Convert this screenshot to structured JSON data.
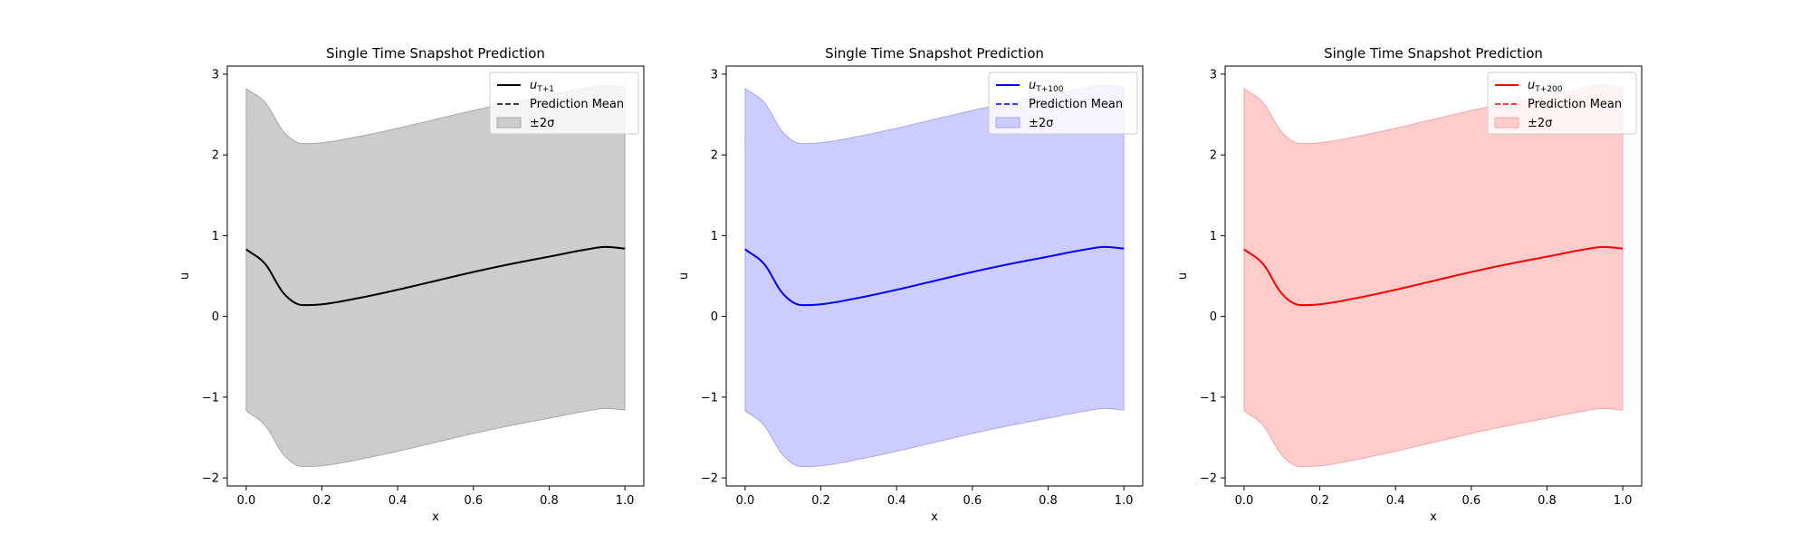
{
  "chart_data": [
    {
      "type": "line",
      "title": "Single Time Snapshot Prediction",
      "xlabel": "x",
      "ylabel": "u",
      "xlim": [
        -0.05,
        1.05
      ],
      "ylim": [
        -2.1,
        3.1
      ],
      "xticks": [
        0.0,
        0.2,
        0.4,
        0.6,
        0.8,
        1.0
      ],
      "xtick_labels": [
        "0.0",
        "0.2",
        "0.4",
        "0.6",
        "0.8",
        "1.0"
      ],
      "yticks": [
        -2,
        -1,
        0,
        1,
        2,
        3
      ],
      "ytick_labels": [
        "−2",
        "−1",
        "0",
        "1",
        "2",
        "3"
      ],
      "color": "#000000",
      "band_color": "#cccccc",
      "band_edge_color": "#a8a8a8",
      "legend_position": "top-right",
      "legend": [
        {
          "base": "u",
          "sub": "T+1"
        },
        {
          "text": "Prediction Mean"
        },
        {
          "text": "±2σ"
        }
      ],
      "x": [
        0.0,
        0.05,
        0.1,
        0.15,
        0.2,
        0.3,
        0.4,
        0.5,
        0.6,
        0.7,
        0.8,
        0.9,
        0.95,
        1.0
      ],
      "series": [
        {
          "name": "u_T+1",
          "values": [
            0.83,
            0.65,
            0.28,
            0.14,
            0.15,
            0.23,
            0.33,
            0.44,
            0.55,
            0.65,
            0.74,
            0.83,
            0.86,
            0.84
          ]
        },
        {
          "name": "Prediction Mean",
          "values": [
            0.83,
            0.65,
            0.28,
            0.14,
            0.15,
            0.23,
            0.33,
            0.44,
            0.55,
            0.65,
            0.74,
            0.83,
            0.86,
            0.84
          ]
        }
      ],
      "band_upper": [
        2.82,
        2.65,
        2.28,
        2.14,
        2.15,
        2.23,
        2.33,
        2.44,
        2.55,
        2.65,
        2.74,
        2.83,
        2.86,
        2.84
      ],
      "band_lower": [
        -1.17,
        -1.35,
        -1.72,
        -1.86,
        -1.85,
        -1.77,
        -1.67,
        -1.56,
        -1.45,
        -1.35,
        -1.26,
        -1.17,
        -1.14,
        -1.16
      ]
    },
    {
      "type": "line",
      "title": "Single Time Snapshot Prediction",
      "xlabel": "x",
      "ylabel": "u",
      "xlim": [
        -0.05,
        1.05
      ],
      "ylim": [
        -2.1,
        3.1
      ],
      "xticks": [
        0.0,
        0.2,
        0.4,
        0.6,
        0.8,
        1.0
      ],
      "xtick_labels": [
        "0.0",
        "0.2",
        "0.4",
        "0.6",
        "0.8",
        "1.0"
      ],
      "yticks": [
        -2,
        -1,
        0,
        1,
        2,
        3
      ],
      "ytick_labels": [
        "−2",
        "−1",
        "0",
        "1",
        "2",
        "3"
      ],
      "color": "#0000ff",
      "band_color": "#ccccff",
      "band_edge_color": "#a8a8f0",
      "legend_position": "top-right",
      "legend": [
        {
          "base": "u",
          "sub": "T+100"
        },
        {
          "text": "Prediction Mean"
        },
        {
          "text": "±2σ"
        }
      ],
      "x": [
        0.0,
        0.05,
        0.1,
        0.15,
        0.2,
        0.3,
        0.4,
        0.5,
        0.6,
        0.7,
        0.8,
        0.9,
        0.95,
        1.0
      ],
      "series": [
        {
          "name": "u_T+100",
          "values": [
            0.83,
            0.65,
            0.28,
            0.14,
            0.15,
            0.23,
            0.33,
            0.44,
            0.55,
            0.65,
            0.74,
            0.83,
            0.86,
            0.84
          ]
        },
        {
          "name": "Prediction Mean",
          "values": [
            0.83,
            0.65,
            0.28,
            0.14,
            0.15,
            0.23,
            0.33,
            0.44,
            0.55,
            0.65,
            0.74,
            0.83,
            0.86,
            0.84
          ]
        }
      ],
      "band_upper": [
        2.82,
        2.65,
        2.28,
        2.14,
        2.15,
        2.23,
        2.33,
        2.44,
        2.55,
        2.65,
        2.74,
        2.83,
        2.86,
        2.84
      ],
      "band_lower": [
        -1.17,
        -1.35,
        -1.72,
        -1.86,
        -1.85,
        -1.77,
        -1.67,
        -1.56,
        -1.45,
        -1.35,
        -1.26,
        -1.17,
        -1.14,
        -1.16
      ]
    },
    {
      "type": "line",
      "title": "Single Time Snapshot Prediction",
      "xlabel": "x",
      "ylabel": "u",
      "xlim": [
        -0.05,
        1.05
      ],
      "ylim": [
        -2.1,
        3.1
      ],
      "xticks": [
        0.0,
        0.2,
        0.4,
        0.6,
        0.8,
        1.0
      ],
      "xtick_labels": [
        "0.0",
        "0.2",
        "0.4",
        "0.6",
        "0.8",
        "1.0"
      ],
      "yticks": [
        -2,
        -1,
        0,
        1,
        2,
        3
      ],
      "ytick_labels": [
        "−2",
        "−1",
        "0",
        "1",
        "2",
        "3"
      ],
      "color": "#ff0000",
      "band_color": "#ffcccc",
      "band_edge_color": "#f0a8a8",
      "legend_position": "top-right",
      "legend": [
        {
          "base": "u",
          "sub": "T+200"
        },
        {
          "text": "Prediction Mean"
        },
        {
          "text": "±2σ"
        }
      ],
      "x": [
        0.0,
        0.05,
        0.1,
        0.15,
        0.2,
        0.3,
        0.4,
        0.5,
        0.6,
        0.7,
        0.8,
        0.9,
        0.95,
        1.0
      ],
      "series": [
        {
          "name": "u_T+200",
          "values": [
            0.83,
            0.65,
            0.28,
            0.14,
            0.15,
            0.23,
            0.33,
            0.44,
            0.55,
            0.65,
            0.74,
            0.83,
            0.86,
            0.84
          ]
        },
        {
          "name": "Prediction Mean",
          "values": [
            0.83,
            0.65,
            0.28,
            0.14,
            0.15,
            0.23,
            0.33,
            0.44,
            0.55,
            0.65,
            0.74,
            0.83,
            0.86,
            0.84
          ]
        }
      ],
      "band_upper": [
        2.82,
        2.65,
        2.28,
        2.14,
        2.15,
        2.23,
        2.33,
        2.44,
        2.55,
        2.65,
        2.74,
        2.83,
        2.86,
        2.84
      ],
      "band_lower": [
        -1.17,
        -1.35,
        -1.72,
        -1.86,
        -1.85,
        -1.77,
        -1.67,
        -1.56,
        -1.45,
        -1.35,
        -1.26,
        -1.17,
        -1.14,
        -1.16
      ]
    }
  ]
}
